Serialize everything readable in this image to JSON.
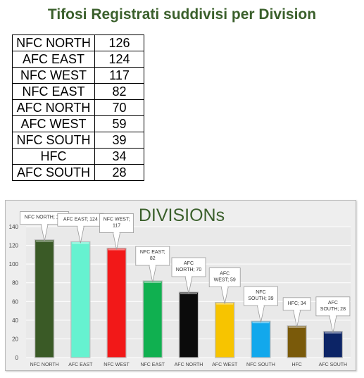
{
  "page_title": "Tifosi Registrati suddivisi per Division",
  "table": {
    "rows": [
      {
        "name": "NFC NORTH",
        "value": "126"
      },
      {
        "name": "AFC EAST",
        "value": "124"
      },
      {
        "name": "NFC WEST",
        "value": "117"
      },
      {
        "name": "NFC EAST",
        "value": "82"
      },
      {
        "name": "AFC NORTH",
        "value": "70"
      },
      {
        "name": "AFC WEST",
        "value": "59"
      },
      {
        "name": "NFC SOUTH",
        "value": "39"
      },
      {
        "name": "HFC",
        "value": "34"
      },
      {
        "name": "AFC SOUTH",
        "value": "28"
      }
    ]
  },
  "chart_data": {
    "type": "bar",
    "title": "DIVISIONs",
    "categories": [
      "NFC NORTH",
      "AFC EAST",
      "NFC WEST",
      "NFC EAST",
      "AFC NORTH",
      "AFC WEST",
      "NFC SOUTH",
      "HFC",
      "AFC SOUTH"
    ],
    "values": [
      126,
      124,
      117,
      82,
      70,
      59,
      39,
      34,
      28
    ],
    "colors": [
      "#3a5a26",
      "#66f2d0",
      "#f21818",
      "#10b050",
      "#0b0b0b",
      "#f7c400",
      "#12a8ec",
      "#7a5a0a",
      "#0c2466"
    ],
    "data_labels": [
      [
        "NFC NORTH; 126"
      ],
      [
        "AFC EAST; 124"
      ],
      [
        "NFC WEST;",
        "117"
      ],
      [
        "NFC EAST;",
        "82"
      ],
      [
        "AFC",
        "NORTH; 70"
      ],
      [
        "AFC",
        "WEST; 59"
      ],
      [
        "NFC",
        "SOUTH; 39"
      ],
      [
        "HFC; 34"
      ],
      [
        "AFC",
        "SOUTH; 28"
      ]
    ],
    "y_ticks": [
      0,
      20,
      40,
      60,
      80,
      100,
      120,
      140
    ],
    "ylim": [
      0,
      140
    ],
    "grid": true,
    "legend": "none",
    "title_color": "#3a5f2b"
  }
}
